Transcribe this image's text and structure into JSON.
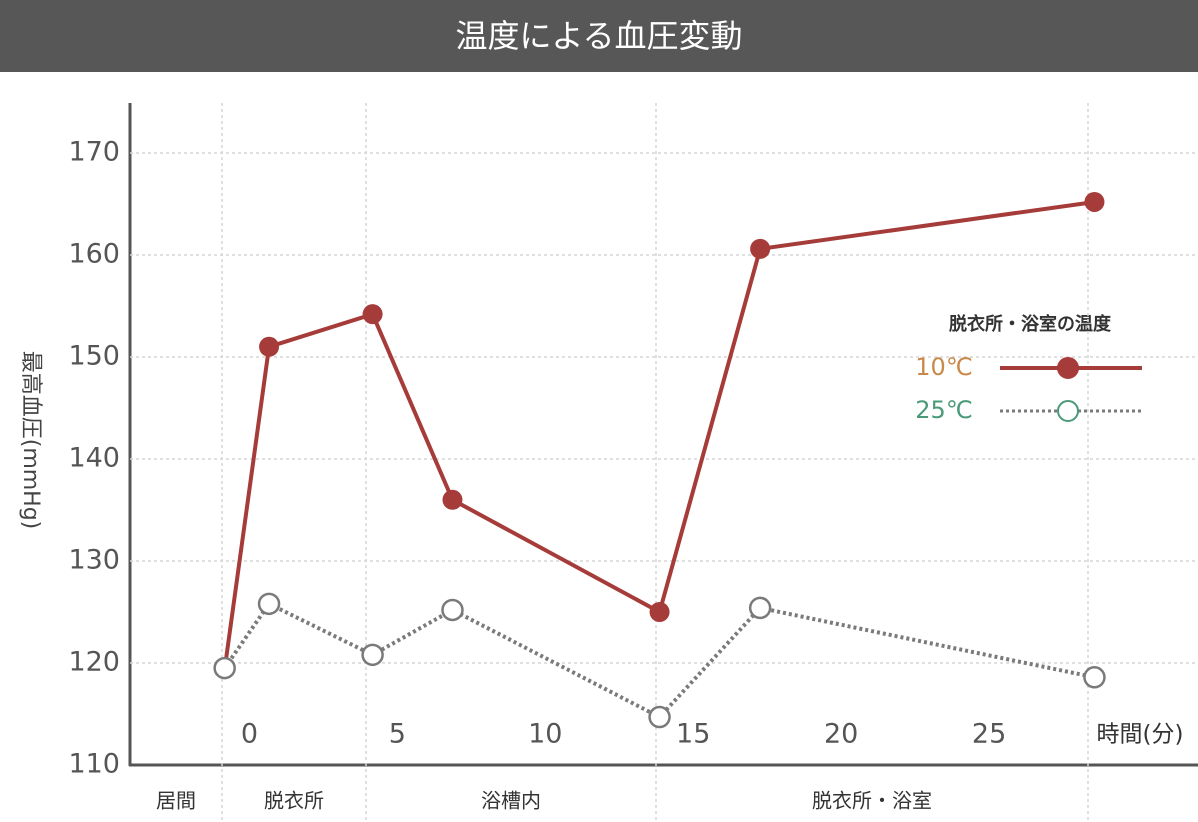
{
  "chart_data": {
    "type": "line",
    "title": "温度による血圧変動",
    "y_label": "最高血圧(mmHg)",
    "x_label": "時間(分)",
    "legend_title": "脱衣所・浴室の温度",
    "phases": [
      "居間",
      "脱衣所",
      "浴槽内",
      "脱衣所・浴室"
    ],
    "x": [
      -0.5,
      1,
      4.5,
      7.2,
      14.2,
      17.6,
      28.9
    ],
    "series": [
      {
        "name": "10℃",
        "color": "#a63c3a",
        "values": [
          119.4,
          151,
          154.2,
          136,
          125,
          160.6,
          165.2
        ]
      },
      {
        "name": "25℃",
        "color": "#7a7a7a",
        "values": [
          119.5,
          125.8,
          120.8,
          125.2,
          114.7,
          125.4,
          118.6
        ]
      }
    ],
    "xlim": [
      -3.7,
      32.4
    ],
    "xticks": [
      0,
      5,
      10,
      15,
      20,
      25
    ],
    "ylim": [
      110,
      175
    ],
    "yticks": [
      110,
      120,
      130,
      140,
      150,
      160,
      170
    ],
    "grid": true
  }
}
